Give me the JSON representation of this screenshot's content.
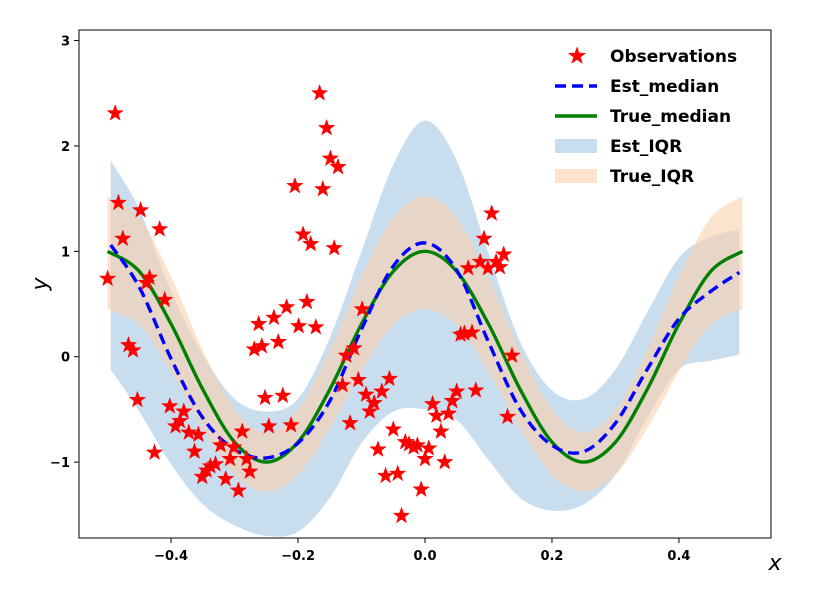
{
  "chart_data": {
    "type": "line",
    "xlabel": "x",
    "ylabel": "y",
    "xlim": [
      -0.545,
      0.545
    ],
    "ylim": [
      -1.72,
      3.1
    ],
    "x_ticks": [
      -0.4,
      -0.2,
      0.0,
      0.2,
      0.4
    ],
    "x_tick_labels": [
      "−0.4",
      "−0.2",
      "0.0",
      "0.2",
      "0.4"
    ],
    "y_ticks": [
      -1,
      0,
      1,
      2,
      3
    ],
    "y_tick_labels": [
      "−1",
      "0",
      "1",
      "2",
      "3"
    ],
    "grid": false,
    "legend_position": "top-right",
    "legend": [
      "Observations",
      "Est_median",
      "True_median",
      "Est_IQR",
      "True_IQR"
    ],
    "series": [
      {
        "name": "Observations",
        "kind": "scatter",
        "color": "#ff0000",
        "points": [
          [
            -0.5,
            0.74
          ],
          [
            -0.488,
            2.31
          ],
          [
            -0.483,
            1.46
          ],
          [
            -0.476,
            1.12
          ],
          [
            -0.467,
            0.11
          ],
          [
            -0.46,
            0.06
          ],
          [
            -0.453,
            -0.41
          ],
          [
            -0.448,
            1.39
          ],
          [
            -0.439,
            0.7
          ],
          [
            -0.434,
            0.75
          ],
          [
            -0.426,
            -0.91
          ],
          [
            -0.418,
            1.21
          ],
          [
            -0.41,
            0.54
          ],
          [
            -0.402,
            -0.47
          ],
          [
            -0.393,
            -0.66
          ],
          [
            -0.386,
            -0.61
          ],
          [
            -0.38,
            -0.52
          ],
          [
            -0.372,
            -0.72
          ],
          [
            -0.363,
            -0.9
          ],
          [
            -0.357,
            -0.74
          ],
          [
            -0.351,
            -1.14
          ],
          [
            -0.344,
            -1.08
          ],
          [
            -0.338,
            -1.04
          ],
          [
            -0.33,
            -1.02
          ],
          [
            -0.322,
            -0.84
          ],
          [
            -0.314,
            -1.16
          ],
          [
            -0.307,
            -0.97
          ],
          [
            -0.301,
            -0.86
          ],
          [
            -0.294,
            -1.27
          ],
          [
            -0.288,
            -0.71
          ],
          [
            -0.281,
            -0.97
          ],
          [
            -0.276,
            -1.09
          ],
          [
            -0.269,
            0.07
          ],
          [
            -0.262,
            0.31
          ],
          [
            -0.257,
            0.1
          ],
          [
            -0.252,
            -0.39
          ],
          [
            -0.246,
            -0.66
          ],
          [
            -0.238,
            0.37
          ],
          [
            -0.231,
            0.14
          ],
          [
            -0.224,
            -0.37
          ],
          [
            -0.218,
            0.47
          ],
          [
            -0.211,
            -0.65
          ],
          [
            -0.205,
            1.62
          ],
          [
            -0.199,
            0.29
          ],
          [
            -0.192,
            1.16
          ],
          [
            -0.186,
            0.52
          ],
          [
            -0.18,
            1.07
          ],
          [
            -0.172,
            0.28
          ],
          [
            -0.166,
            2.5
          ],
          [
            -0.161,
            1.59
          ],
          [
            -0.155,
            2.17
          ],
          [
            -0.149,
            1.88
          ],
          [
            -0.143,
            1.03
          ],
          [
            -0.137,
            1.8
          ],
          [
            -0.13,
            -0.27
          ],
          [
            -0.124,
            0.01
          ],
          [
            -0.118,
            -0.63
          ],
          [
            -0.112,
            0.08
          ],
          [
            -0.105,
            -0.22
          ],
          [
            -0.099,
            0.45
          ],
          [
            -0.093,
            -0.36
          ],
          [
            -0.087,
            -0.52
          ],
          [
            -0.08,
            -0.44
          ],
          [
            -0.074,
            -0.88
          ],
          [
            -0.068,
            -0.33
          ],
          [
            -0.062,
            -1.13
          ],
          [
            -0.056,
            -0.21
          ],
          [
            -0.05,
            -0.69
          ],
          [
            -0.043,
            -1.11
          ],
          [
            -0.037,
            -1.51
          ],
          [
            -0.031,
            -0.81
          ],
          [
            -0.025,
            -0.83
          ],
          [
            -0.018,
            -0.86
          ],
          [
            -0.012,
            -0.84
          ],
          [
            -0.006,
            -1.26
          ],
          [
            0.0,
            -0.97
          ],
          [
            0.006,
            -0.87
          ],
          [
            0.012,
            -0.45
          ],
          [
            0.018,
            -0.56
          ],
          [
            0.025,
            -0.71
          ],
          [
            0.031,
            -1.0
          ],
          [
            0.037,
            -0.54
          ],
          [
            0.043,
            -0.42
          ],
          [
            0.05,
            -0.33
          ],
          [
            0.056,
            0.21
          ],
          [
            0.062,
            0.22
          ],
          [
            0.068,
            0.84
          ],
          [
            0.074,
            0.23
          ],
          [
            0.08,
            -0.32
          ],
          [
            0.087,
            0.9
          ],
          [
            0.093,
            1.12
          ],
          [
            0.099,
            0.84
          ],
          [
            0.105,
            1.36
          ],
          [
            0.112,
            0.9
          ],
          [
            0.118,
            0.85
          ],
          [
            0.124,
            0.97
          ],
          [
            0.13,
            -0.57
          ],
          [
            0.137,
            0.01
          ]
        ]
      },
      {
        "name": "Est_median",
        "kind": "line",
        "style": "dashed",
        "color": "#0000ff",
        "x": [
          -0.495,
          -0.45,
          -0.4,
          -0.35,
          -0.3,
          -0.25,
          -0.2,
          -0.15,
          -0.1,
          -0.05,
          0.0,
          0.05,
          0.1,
          0.15,
          0.2,
          0.25,
          0.3,
          0.35,
          0.4,
          0.45,
          0.495
        ],
        "values": [
          1.06,
          0.66,
          -0.02,
          -0.58,
          -0.88,
          -0.96,
          -0.82,
          -0.42,
          0.26,
          0.86,
          1.08,
          0.82,
          0.14,
          -0.5,
          -0.84,
          -0.9,
          -0.63,
          -0.12,
          0.36,
          0.62,
          0.8
        ]
      },
      {
        "name": "True_median",
        "kind": "line",
        "style": "solid",
        "color": "#008000",
        "x": [
          -0.5,
          -0.45,
          -0.4,
          -0.35,
          -0.3,
          -0.25,
          -0.2,
          -0.15,
          -0.1,
          -0.05,
          0.0,
          0.05,
          0.1,
          0.15,
          0.2,
          0.25,
          0.3,
          0.35,
          0.4,
          0.45,
          0.5
        ],
        "values": [
          1.0,
          0.81,
          0.31,
          -0.31,
          -0.81,
          -1.0,
          -0.81,
          -0.31,
          0.31,
          0.81,
          1.0,
          0.81,
          0.31,
          -0.31,
          -0.81,
          -1.0,
          -0.81,
          -0.31,
          0.31,
          0.81,
          1.0
        ]
      },
      {
        "name": "Est_IQR",
        "kind": "band",
        "color": "#a6c8e3",
        "x": [
          -0.495,
          -0.45,
          -0.4,
          -0.35,
          -0.3,
          -0.25,
          -0.2,
          -0.15,
          -0.1,
          -0.05,
          0.0,
          0.05,
          0.1,
          0.15,
          0.2,
          0.25,
          0.3,
          0.35,
          0.4,
          0.45,
          0.495
        ],
        "upper": [
          1.86,
          1.4,
          0.62,
          0.02,
          -0.4,
          -0.52,
          -0.4,
          0.18,
          1.0,
          1.82,
          2.24,
          1.86,
          0.98,
          0.14,
          -0.32,
          -0.4,
          -0.12,
          0.42,
          0.94,
          1.14,
          1.2
        ],
        "lower": [
          -0.12,
          -0.52,
          -1.02,
          -1.4,
          -1.6,
          -1.7,
          -1.66,
          -1.34,
          -0.82,
          -0.52,
          -0.5,
          -0.6,
          -0.98,
          -1.34,
          -1.46,
          -1.4,
          -1.12,
          -0.58,
          -0.12,
          -0.04,
          0.02
        ]
      },
      {
        "name": "True_IQR",
        "kind": "band",
        "color": "#fad2ae",
        "x": [
          -0.5,
          -0.45,
          -0.4,
          -0.35,
          -0.3,
          -0.25,
          -0.2,
          -0.15,
          -0.1,
          -0.05,
          0.0,
          0.05,
          0.1,
          0.15,
          0.2,
          0.25,
          0.3,
          0.35,
          0.4,
          0.45,
          0.5
        ],
        "upper": [
          1.52,
          1.32,
          0.76,
          0.06,
          -0.5,
          -0.72,
          -0.5,
          0.06,
          0.76,
          1.32,
          1.52,
          1.32,
          0.76,
          0.06,
          -0.5,
          -0.72,
          -0.5,
          0.06,
          0.76,
          1.32,
          1.52
        ],
        "lower": [
          0.45,
          0.3,
          -0.14,
          -0.68,
          -1.12,
          -1.28,
          -1.12,
          -0.68,
          -0.14,
          0.3,
          0.45,
          0.3,
          -0.14,
          -0.68,
          -1.12,
          -1.28,
          -1.12,
          -0.68,
          -0.14,
          0.3,
          0.45
        ]
      }
    ]
  }
}
